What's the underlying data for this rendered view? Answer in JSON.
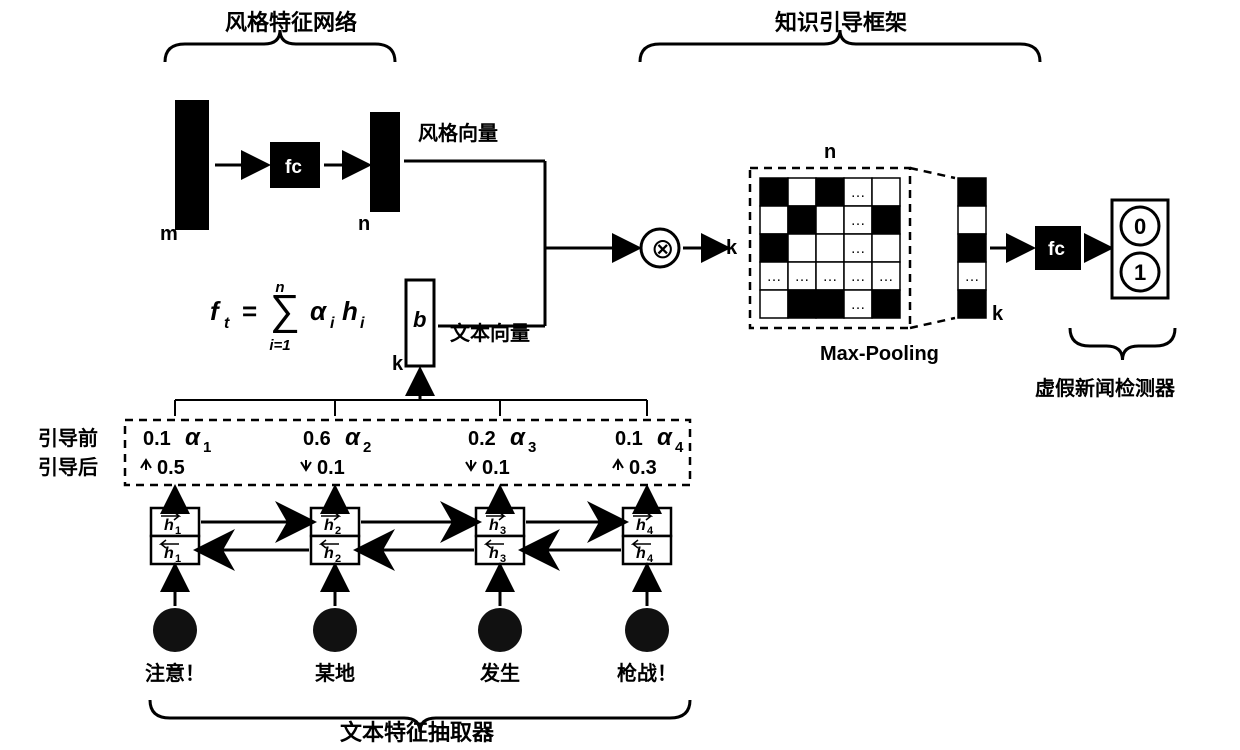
{
  "titles": {
    "style_net": "风格特征网络",
    "knowledge_frame": "知识引导框架",
    "text_extractor": "文本特征抽取器",
    "fake_detector": "虚假新闻检测器"
  },
  "labels": {
    "style_vector": "风格向量",
    "text_vector": "文本向量",
    "max_pooling": "Max-Pooling",
    "before_guide": "引导前",
    "after_guide": "引导后",
    "m": "m",
    "n": "n",
    "k": "k",
    "b": "b",
    "fc": "fc",
    "dots": "…",
    "zero": "0",
    "one": "1"
  },
  "formula": {
    "lhs": "f",
    "lhs_sub": "t",
    "eq": "=",
    "sum_top": "n",
    "sum_bot": "i=1",
    "term_a": "α",
    "term_a_sub": "i",
    "term_h": "h",
    "term_h_sub": "i"
  },
  "attention": {
    "before": [
      {
        "val": "0.1",
        "a": "α",
        "sub": "1"
      },
      {
        "val": "0.6",
        "a": "α",
        "sub": "2"
      },
      {
        "val": "0.2",
        "a": "α",
        "sub": "3"
      },
      {
        "val": "0.1",
        "a": "α",
        "sub": "4"
      }
    ],
    "after": [
      {
        "dir": "up",
        "val": "0.5"
      },
      {
        "dir": "down",
        "val": "0.1"
      },
      {
        "dir": "down",
        "val": "0.1"
      },
      {
        "dir": "up",
        "val": "0.3"
      }
    ]
  },
  "rnn": {
    "h_fwd": [
      {
        "sub": "1"
      },
      {
        "sub": "2"
      },
      {
        "sub": "3"
      },
      {
        "sub": "4"
      }
    ],
    "h_bwd": [
      {
        "sub": "1"
      },
      {
        "sub": "2"
      },
      {
        "sub": "3"
      },
      {
        "sub": "4"
      }
    ],
    "words": [
      "注意！",
      "某地",
      "发生",
      "枪战！"
    ]
  },
  "matrix": {
    "n": 5,
    "k": 5,
    "fill": [
      [
        1,
        0,
        1,
        2,
        0
      ],
      [
        0,
        1,
        0,
        2,
        1
      ],
      [
        1,
        0,
        0,
        2,
        0
      ],
      [
        2,
        2,
        2,
        2,
        2
      ],
      [
        0,
        1,
        1,
        2,
        1
      ]
    ]
  },
  "pool_vec": {
    "k": 5,
    "fill": [
      1,
      0,
      1,
      2,
      1
    ]
  },
  "colors": {
    "black": "#000000",
    "white": "#ffffff",
    "node_fill": "#111111"
  },
  "layout": {
    "title_fontsize": 22,
    "label_fontsize": 20,
    "small_fontsize": 16,
    "formula_fontsize": 26,
    "stroke_thick": 3,
    "stroke_thin": 2,
    "dash": "8 6",
    "matrix_cell": 28,
    "rnn_cell_w": 48,
    "rnn_cell_h": 28,
    "circle_r": 22
  }
}
